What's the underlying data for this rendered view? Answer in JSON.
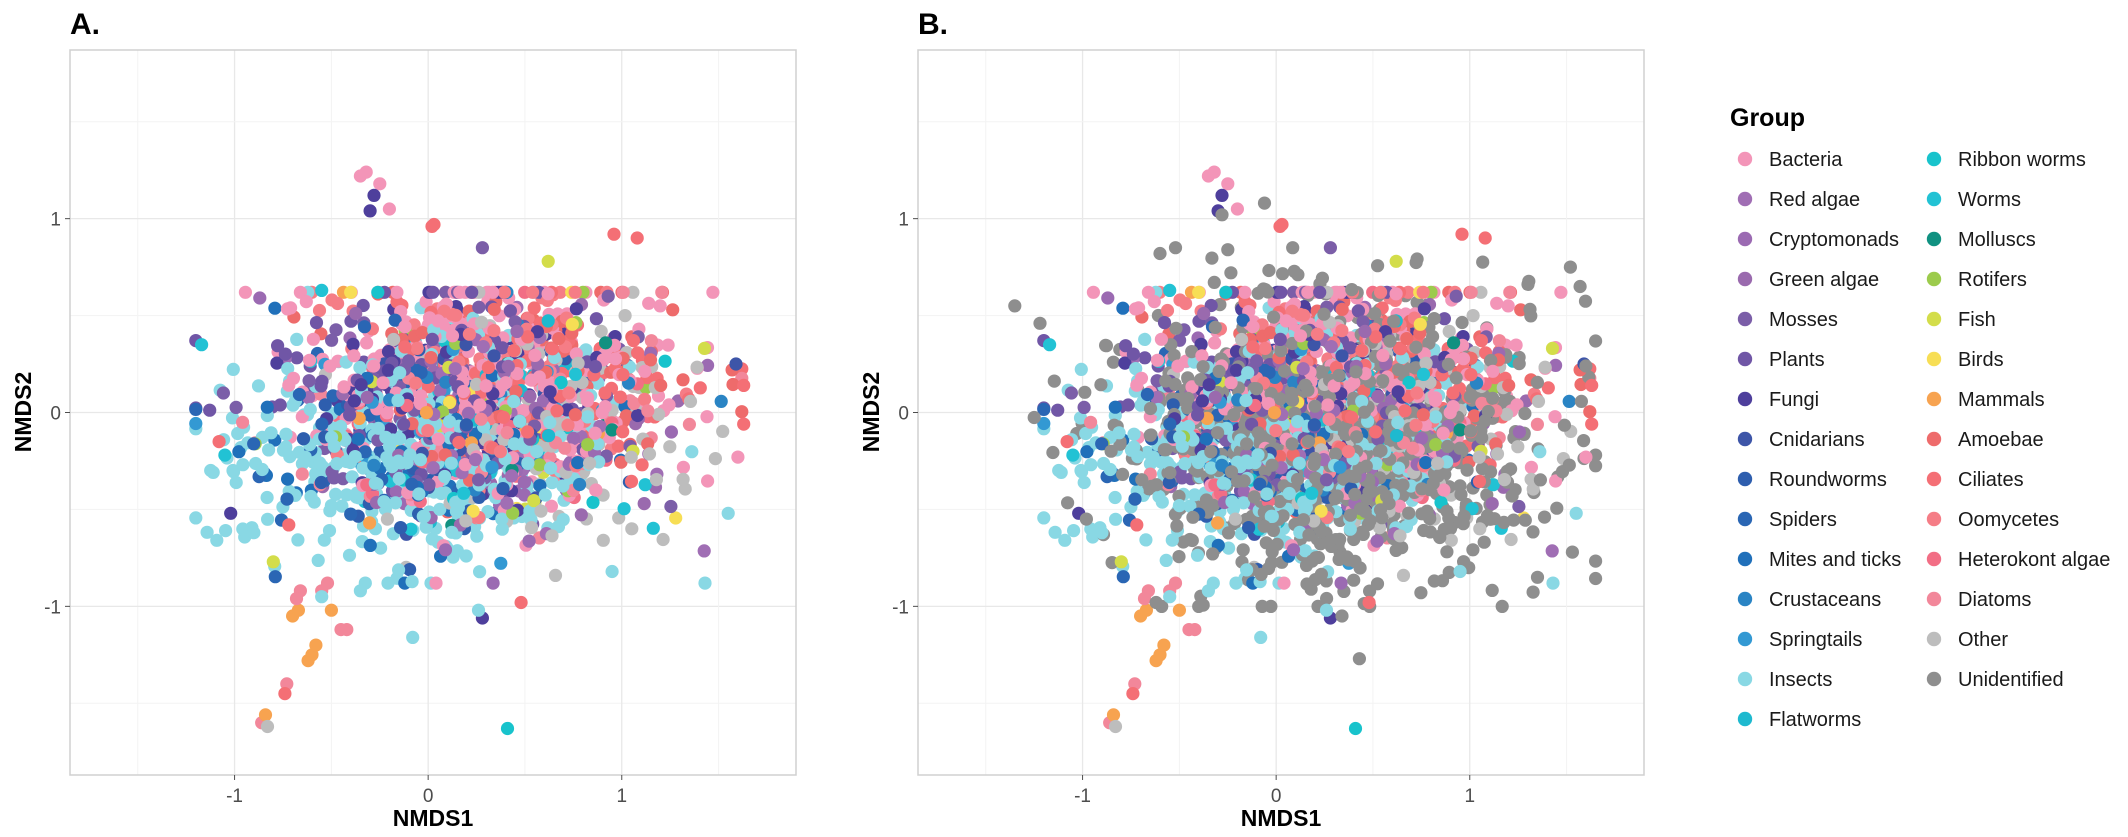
{
  "chart_data": [
    {
      "panel": "A.",
      "type": "scatter",
      "xlabel": "NMDS1",
      "ylabel": "NMDS2",
      "xlim": [
        -1.85,
        1.9
      ],
      "ylim": [
        -1.87,
        1.87
      ],
      "xticks": [
        -1,
        0,
        1
      ],
      "yticks": [
        -1,
        0,
        1
      ],
      "grid": true,
      "points_approximate": true,
      "cluster_model": {
        "default_center": [
          0.3,
          -0.05
        ],
        "default_spread": [
          0.45,
          0.28
        ],
        "group_centers": {
          "Bacteria": [
            0.3,
            0.12
          ],
          "Insects": [
            -0.05,
            -0.22
          ],
          "Other": [
            0.6,
            -0.05
          ],
          "Ciliates": [
            0.6,
            0.15
          ],
          "Amoebae": [
            0.5,
            0.2
          ],
          "Oomycetes": [
            0.3,
            0.2
          ],
          "Mosses": [
            0.1,
            0.1
          ],
          "Plants": [
            0.0,
            0.15
          ],
          "Fungi": [
            0.2,
            0.08
          ],
          "Roundworms": [
            -0.15,
            -0.18
          ],
          "Spiders": [
            -0.3,
            -0.15
          ],
          "Mites and ticks": [
            -0.1,
            -0.25
          ]
        }
      },
      "series": [
        {
          "name": "Bacteria",
          "count": 320
        },
        {
          "name": "Red algae",
          "count": 40
        },
        {
          "name": "Cryptomonads",
          "count": 40
        },
        {
          "name": "Green algae",
          "count": 60
        },
        {
          "name": "Mosses",
          "count": 80
        },
        {
          "name": "Plants",
          "count": 80
        },
        {
          "name": "Fungi",
          "count": 90
        },
        {
          "name": "Cnidarians",
          "count": 30
        },
        {
          "name": "Roundworms",
          "count": 40
        },
        {
          "name": "Spiders",
          "count": 40
        },
        {
          "name": "Mites and ticks",
          "count": 50
        },
        {
          "name": "Crustaceans",
          "count": 25
        },
        {
          "name": "Springtails",
          "count": 25
        },
        {
          "name": "Insects",
          "count": 420
        },
        {
          "name": "Flatworms",
          "count": 20
        },
        {
          "name": "Ribbon worms",
          "count": 15
        },
        {
          "name": "Worms",
          "count": 20
        },
        {
          "name": "Molluscs",
          "count": 8
        },
        {
          "name": "Rotifers",
          "count": 20
        },
        {
          "name": "Fish",
          "count": 15
        },
        {
          "name": "Birds",
          "count": 10
        },
        {
          "name": "Mammals",
          "count": 12
        },
        {
          "name": "Amoebae",
          "count": 80
        },
        {
          "name": "Ciliates",
          "count": 90
        },
        {
          "name": "Oomycetes",
          "count": 100
        },
        {
          "name": "Heterokont algae",
          "count": 40
        },
        {
          "name": "Diatoms",
          "count": 60
        },
        {
          "name": "Other",
          "count": 130
        },
        {
          "name": "Unidentified",
          "count": 0
        }
      ],
      "fixed_points": [
        {
          "group": "Bacteria",
          "x": -0.35,
          "y": 1.22
        },
        {
          "group": "Bacteria",
          "x": -0.32,
          "y": 1.24
        },
        {
          "group": "Bacteria",
          "x": -0.25,
          "y": 1.18
        },
        {
          "group": "Bacteria",
          "x": -0.2,
          "y": 1.05
        },
        {
          "group": "Fungi",
          "x": -0.28,
          "y": 1.12
        },
        {
          "group": "Fungi",
          "x": -0.3,
          "y": 1.04
        },
        {
          "group": "Ciliates",
          "x": 0.02,
          "y": 0.96
        },
        {
          "group": "Ciliates",
          "x": 0.03,
          "y": 0.97
        },
        {
          "group": "Ciliates",
          "x": 0.96,
          "y": 0.92
        },
        {
          "group": "Ciliates",
          "x": 1.08,
          "y": 0.9
        },
        {
          "group": "Fish",
          "x": 0.62,
          "y": 0.78
        },
        {
          "group": "Worms",
          "x": -1.17,
          "y": 0.35
        },
        {
          "group": "Ribbon worms",
          "x": 0.41,
          "y": -1.63
        },
        {
          "group": "Fungi",
          "x": 0.28,
          "y": -1.06
        },
        {
          "group": "Ciliates",
          "x": 0.48,
          "y": -0.98
        },
        {
          "group": "Insects",
          "x": -0.08,
          "y": -1.16
        },
        {
          "group": "Insects",
          "x": 0.26,
          "y": -1.02
        },
        {
          "group": "Fish",
          "x": -0.8,
          "y": -0.77
        },
        {
          "group": "Diatoms",
          "x": -0.86,
          "y": -1.6
        },
        {
          "group": "Mammals",
          "x": -0.84,
          "y": -1.56
        },
        {
          "group": "Other",
          "x": -0.83,
          "y": -1.62
        },
        {
          "group": "Diatoms",
          "x": -0.73,
          "y": -1.4
        },
        {
          "group": "Ciliates",
          "x": -0.74,
          "y": -1.45
        },
        {
          "group": "Mammals",
          "x": -0.6,
          "y": -1.25
        },
        {
          "group": "Mammals",
          "x": -0.58,
          "y": -1.2
        },
        {
          "group": "Mammals",
          "x": -0.62,
          "y": -1.28
        },
        {
          "group": "Mammals",
          "x": -0.7,
          "y": -1.05
        },
        {
          "group": "Mammals",
          "x": -0.67,
          "y": -1.02
        },
        {
          "group": "Mammals",
          "x": -0.5,
          "y": -1.02
        },
        {
          "group": "Diatoms",
          "x": -0.66,
          "y": -0.92
        },
        {
          "group": "Diatoms",
          "x": -0.68,
          "y": -0.96
        },
        {
          "group": "Diatoms",
          "x": -0.55,
          "y": -0.92
        },
        {
          "group": "Diatoms",
          "x": -0.52,
          "y": -0.88
        },
        {
          "group": "Diatoms",
          "x": -0.45,
          "y": -1.12
        },
        {
          "group": "Diatoms",
          "x": -0.42,
          "y": -1.12
        },
        {
          "group": "Insects",
          "x": -0.55,
          "y": -0.95
        },
        {
          "group": "Insects",
          "x": -0.35,
          "y": -0.92
        },
        {
          "group": "Insects",
          "x": 0.95,
          "y": -0.82
        },
        {
          "group": "Insects",
          "x": 1.43,
          "y": -0.88
        },
        {
          "group": "Ciliates",
          "x": 1.63,
          "y": 0.14
        },
        {
          "group": "Amoebae",
          "x": 1.57,
          "y": 0.22
        },
        {
          "group": "Cnidarians",
          "x": 1.59,
          "y": 0.25
        },
        {
          "group": "Bacteria",
          "x": 1.6,
          "y": -0.23
        },
        {
          "group": "Ciliates",
          "x": 1.63,
          "y": -0.06
        },
        {
          "group": "Insects",
          "x": 1.55,
          "y": -0.52
        },
        {
          "group": "Worms",
          "x": -0.55,
          "y": 0.63
        },
        {
          "group": "Birds",
          "x": -0.4,
          "y": 0.62
        },
        {
          "group": "Mosses",
          "x": 0.28,
          "y": 0.85
        },
        {
          "group": "Mosses",
          "x": 0.93,
          "y": 0.6
        },
        {
          "group": "Fungi",
          "x": -1.02,
          "y": -0.52
        },
        {
          "group": "Insects",
          "x": -0.9,
          "y": -0.62
        },
        {
          "group": "Ciliates",
          "x": -0.72,
          "y": -0.58
        },
        {
          "group": "Worms",
          "x": -1.05,
          "y": -0.22
        },
        {
          "group": "Ciliates",
          "x": -1.08,
          "y": -0.15
        }
      ]
    },
    {
      "panel": "B.",
      "type": "scatter",
      "xlabel": "NMDS1",
      "ylabel": "NMDS2",
      "xlim": [
        -1.85,
        1.9
      ],
      "ylim": [
        -1.87,
        1.87
      ],
      "xticks": [
        -1,
        0,
        1
      ],
      "yticks": [
        -1,
        0,
        1
      ],
      "grid": true,
      "points_approximate": true,
      "note_same_as_panel_A_plus": "Unidentified",
      "series": [
        {
          "name": "Unidentified",
          "count": 900,
          "center": [
            0.3,
            -0.15
          ],
          "spread": [
            0.52,
            0.34
          ]
        }
      ],
      "fixed_points": [
        {
          "group": "Unidentified",
          "x": -1.35,
          "y": 0.55
        },
        {
          "group": "Unidentified",
          "x": -1.22,
          "y": 0.46
        },
        {
          "group": "Unidentified",
          "x": -0.06,
          "y": 1.08
        },
        {
          "group": "Unidentified",
          "x": 1.6,
          "y": 0.24
        },
        {
          "group": "Unidentified",
          "x": 1.52,
          "y": 0.75
        },
        {
          "group": "Unidentified",
          "x": 1.57,
          "y": 0.65
        },
        {
          "group": "Unidentified",
          "x": 1.53,
          "y": -0.72
        },
        {
          "group": "Unidentified",
          "x": 0.43,
          "y": -1.27
        },
        {
          "group": "Unidentified",
          "x": 0.34,
          "y": -1.05
        },
        {
          "group": "Unidentified",
          "x": -0.62,
          "y": -0.98
        },
        {
          "group": "Unidentified",
          "x": -0.4,
          "y": -1.0
        },
        {
          "group": "Unidentified",
          "x": -0.6,
          "y": 0.82
        },
        {
          "group": "Unidentified",
          "x": -0.25,
          "y": 0.84
        },
        {
          "group": "Unidentified",
          "x": -0.28,
          "y": 1.02
        },
        {
          "group": "Unidentified",
          "x": 1.35,
          "y": -0.85
        },
        {
          "group": "Unidentified",
          "x": -0.98,
          "y": -0.55
        }
      ]
    }
  ],
  "legend": {
    "title": "Group",
    "placement": "right",
    "items": [
      {
        "name": "Bacteria",
        "color": "#F395B8"
      },
      {
        "name": "Red algae",
        "color": "#A06EB4"
      },
      {
        "name": "Cryptomonads",
        "color": "#9B6AB2"
      },
      {
        "name": "Green algae",
        "color": "#9A6AAE"
      },
      {
        "name": "Mosses",
        "color": "#7B5EA8"
      },
      {
        "name": "Plants",
        "color": "#7056A6"
      },
      {
        "name": "Fungi",
        "color": "#4E3F9C"
      },
      {
        "name": "Cnidarians",
        "color": "#3D55A8"
      },
      {
        "name": "Roundworms",
        "color": "#2E5EAE"
      },
      {
        "name": "Spiders",
        "color": "#2A66B4"
      },
      {
        "name": "Mites and ticks",
        "color": "#2070BA"
      },
      {
        "name": "Crustaceans",
        "color": "#2A84C4"
      },
      {
        "name": "Springtails",
        "color": "#3399D3"
      },
      {
        "name": "Insects",
        "color": "#89D8E4"
      },
      {
        "name": "Flatworms",
        "color": "#1EB9CF"
      },
      {
        "name": "Ribbon worms",
        "color": "#18C3CC"
      },
      {
        "name": "Worms",
        "color": "#22C2D4"
      },
      {
        "name": "Molluscs",
        "color": "#109181"
      },
      {
        "name": "Rotifers",
        "color": "#9CCB4C"
      },
      {
        "name": "Fish",
        "color": "#D3DD4A"
      },
      {
        "name": "Birds",
        "color": "#F7DE55"
      },
      {
        "name": "Mammals",
        "color": "#F7A350"
      },
      {
        "name": "Amoebae",
        "color": "#EE6B6B"
      },
      {
        "name": "Ciliates",
        "color": "#F46F75"
      },
      {
        "name": "Oomycetes",
        "color": "#F57D86"
      },
      {
        "name": "Heterokont algae",
        "color": "#F26E85"
      },
      {
        "name": "Diatoms",
        "color": "#F2879A"
      },
      {
        "name": "Other",
        "color": "#BDBDBD"
      },
      {
        "name": "Unidentified",
        "color": "#8E8E8E"
      }
    ]
  },
  "style": {
    "panel_border": "#d0d0d0",
    "grid_major": "#e8e8e8",
    "grid_minor": "#f3f3f3",
    "tick_label_color": "#4d4d4d"
  }
}
